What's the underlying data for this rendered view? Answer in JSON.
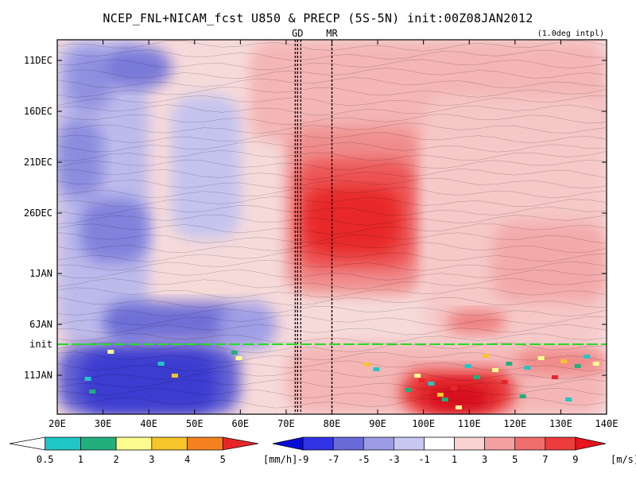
{
  "chart_data": {
    "type": "heatmap",
    "title": "NCEP_FNL+NICAM_fcst U850 & PRECP (5S-5N) init:00Z08JAN2012",
    "note": "(1.0deg intpl)",
    "x_ticks": [
      "20E",
      "30E",
      "40E",
      "50E",
      "60E",
      "70E",
      "80E",
      "90E",
      "100E",
      "110E",
      "120E",
      "130E",
      "140E"
    ],
    "x_range": [
      20,
      140
    ],
    "y_ticks": [
      "11DEC",
      "16DEC",
      "21DEC",
      "26DEC",
      "1JAN",
      "6JAN",
      "11JAN"
    ],
    "markers": [
      {
        "label": "GD",
        "lon": 72.5
      },
      {
        "label": "MR",
        "lon": 80
      }
    ],
    "init_label": "init",
    "precip_colorbar": {
      "unit": "[mm/h]",
      "labels": [
        "0.5",
        "1",
        "2",
        "3",
        "4",
        "5"
      ],
      "colors": [
        "#ffffff",
        "#21c7c7",
        "#21b07b",
        "#fdfd8f",
        "#f5c52a",
        "#f5821f",
        "#e8262a"
      ]
    },
    "wind_colorbar": {
      "unit": "[m/s]",
      "labels": [
        "-9",
        "-7",
        "-5",
        "-3",
        "-1",
        "1",
        "3",
        "5",
        "7",
        "9"
      ],
      "colors": [
        "#0a0ad6",
        "#3232e6",
        "#6a6ad9",
        "#9c9ce6",
        "#c8c8f2",
        "#ffffff",
        "#fad2d2",
        "#f4a0a0",
        "#f06e6e",
        "#ec3c3c",
        "#e8141e"
      ]
    }
  }
}
